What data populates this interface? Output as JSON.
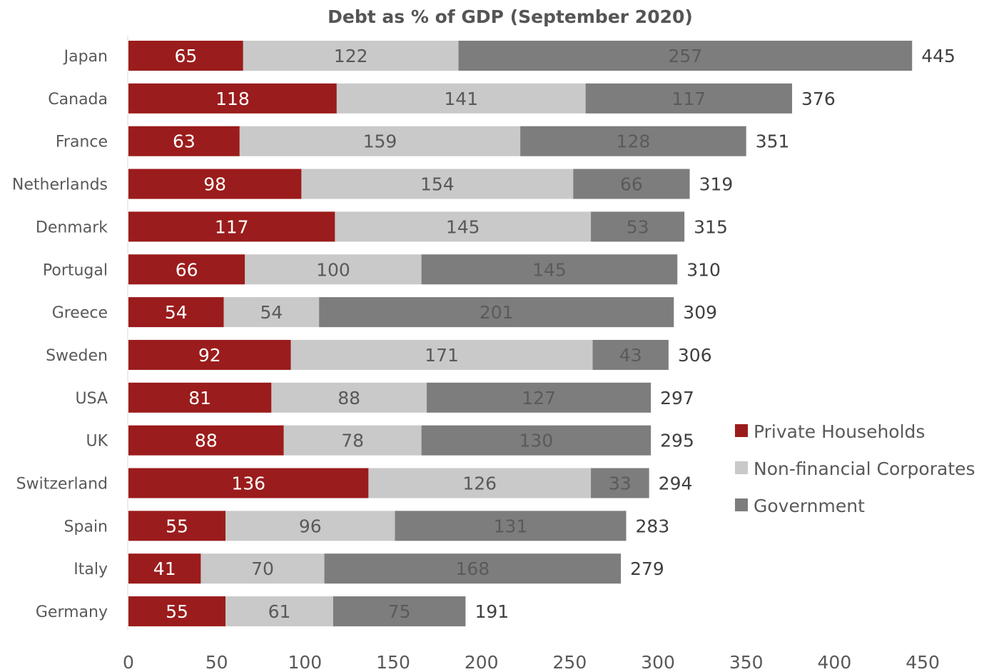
{
  "chart_data": {
    "type": "bar",
    "orientation": "horizontal",
    "stacked": true,
    "title": "Debt as % of GDP (September 2020)",
    "xlabel": "",
    "ylabel": "",
    "xlim": [
      0,
      450
    ],
    "x_ticks": [
      0,
      50,
      100,
      150,
      200,
      250,
      300,
      350,
      400,
      450
    ],
    "grid": false,
    "legend_position": "right",
    "categories": [
      "Japan",
      "Canada",
      "France",
      "Netherlands",
      "Denmark",
      "Portugal",
      "Greece",
      "Sweden",
      "USA",
      "UK",
      "Switzerland",
      "Spain",
      "Italy",
      "Germany"
    ],
    "series": [
      {
        "name": "Private Households",
        "color": "#9b1c1c",
        "label_color": "#ffffff",
        "values": [
          65,
          118,
          63,
          98,
          117,
          66,
          54,
          92,
          81,
          88,
          136,
          55,
          41,
          55
        ]
      },
      {
        "name": "Non-financial Corporates",
        "color": "#c9c9c9",
        "label_color": "#595959",
        "values": [
          122,
          141,
          159,
          154,
          145,
          100,
          54,
          171,
          88,
          78,
          126,
          96,
          70,
          61
        ]
      },
      {
        "name": "Government",
        "color": "#7d7d7d",
        "label_color": "#5a5a5a",
        "values": [
          257,
          117,
          128,
          66,
          53,
          145,
          201,
          43,
          127,
          130,
          33,
          131,
          168,
          75
        ]
      }
    ],
    "totals": [
      445,
      376,
      351,
      319,
      315,
      310,
      309,
      306,
      297,
      295,
      294,
      283,
      279,
      191
    ]
  }
}
